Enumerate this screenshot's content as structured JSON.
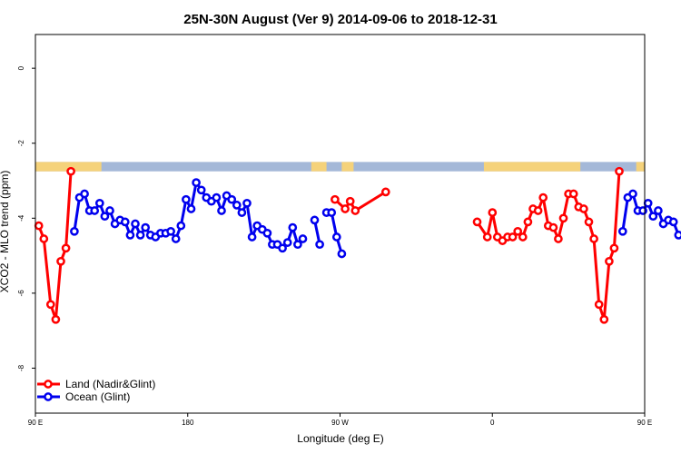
{
  "chart_data": {
    "type": "line",
    "title": "25N-30N August (Ver 9)   2014-09-06 to 2018-12-31",
    "xlabel": "Longitude (deg E)",
    "ylabel": "XCO2 - MLO trend (ppm)",
    "xlim": [
      90,
      450
    ],
    "ylim": [
      -9.2,
      0.9
    ],
    "x_ticks": [
      {
        "value": 90,
        "label": "90 E"
      },
      {
        "value": 180,
        "label": "180"
      },
      {
        "value": 270,
        "label": "90 W"
      },
      {
        "value": 360,
        "label": "0"
      },
      {
        "value": 450,
        "label": "90 E"
      },
      {
        "value": 540,
        "label": "180"
      }
    ],
    "y_ticks": [
      {
        "value": 0,
        "label": "0"
      },
      {
        "value": -2,
        "label": "-2"
      },
      {
        "value": -4,
        "label": "-4"
      },
      {
        "value": -6,
        "label": "-6"
      },
      {
        "value": -8,
        "label": "-8"
      }
    ],
    "legend_position": "bottom-left",
    "surface_band": {
      "y_top": -2.5,
      "y_bottom": -2.75,
      "ocean_color": "#a4b8d8",
      "land_color": "#f5d27a",
      "land_segments": [
        [
          90,
          129
        ],
        [
          253,
          262
        ],
        [
          271,
          278
        ],
        [
          355,
          412
        ],
        [
          445,
          490
        ]
      ]
    },
    "series": [
      {
        "name": "Land (Nadir&Glint)",
        "color": "#ff0000",
        "segments": [
          [
            [
              92,
              -4.2
            ],
            [
              95,
              -4.55
            ],
            [
              99,
              -6.3
            ],
            [
              102,
              -6.7
            ],
            [
              105,
              -5.15
            ],
            [
              108,
              -4.8
            ],
            [
              111,
              -2.75
            ]
          ],
          [
            [
              267,
              -3.5
            ],
            [
              273,
              -3.75
            ],
            [
              276,
              -3.55
            ],
            [
              279,
              -3.8
            ],
            [
              297,
              -3.3
            ]
          ],
          [
            [
              351,
              -4.1
            ],
            [
              357,
              -4.5
            ],
            [
              360,
              -3.85
            ],
            [
              363,
              -4.5
            ],
            [
              366,
              -4.6
            ],
            [
              369,
              -4.5
            ],
            [
              372,
              -4.5
            ],
            [
              375,
              -4.35
            ],
            [
              378,
              -4.5
            ],
            [
              381,
              -4.1
            ],
            [
              384,
              -3.75
            ],
            [
              387,
              -3.8
            ],
            [
              390,
              -3.45
            ],
            [
              393,
              -4.2
            ],
            [
              396,
              -4.25
            ],
            [
              399,
              -4.55
            ],
            [
              402,
              -4.0
            ],
            [
              405,
              -3.35
            ],
            [
              408,
              -3.35
            ],
            [
              411,
              -3.7
            ],
            [
              414,
              -3.75
            ],
            [
              417,
              -4.1
            ],
            [
              420,
              -4.55
            ],
            [
              423,
              -6.3
            ],
            [
              426,
              -6.7
            ],
            [
              429,
              -5.15
            ],
            [
              432,
              -4.8
            ],
            [
              435,
              -2.75
            ]
          ]
        ]
      },
      {
        "name": "Ocean (Glint)",
        "color": "#0000ee",
        "segments": [
          [
            [
              113,
              -4.35
            ],
            [
              116,
              -3.45
            ],
            [
              119,
              -3.35
            ],
            [
              122,
              -3.8
            ],
            [
              125,
              -3.8
            ],
            [
              128,
              -3.6
            ],
            [
              131,
              -3.95
            ],
            [
              134,
              -3.8
            ],
            [
              137,
              -4.15
            ],
            [
              140,
              -4.05
            ],
            [
              143,
              -4.1
            ],
            [
              146,
              -4.45
            ],
            [
              149,
              -4.15
            ],
            [
              152,
              -4.45
            ],
            [
              155,
              -4.25
            ],
            [
              158,
              -4.45
            ],
            [
              161,
              -4.5
            ],
            [
              164,
              -4.4
            ],
            [
              167,
              -4.4
            ],
            [
              170,
              -4.35
            ],
            [
              173,
              -4.55
            ],
            [
              176,
              -4.2
            ],
            [
              179,
              -3.5
            ],
            [
              182,
              -3.75
            ],
            [
              185,
              -3.05
            ],
            [
              188,
              -3.25
            ],
            [
              191,
              -3.45
            ],
            [
              194,
              -3.55
            ],
            [
              197,
              -3.45
            ],
            [
              200,
              -3.8
            ],
            [
              203,
              -3.4
            ],
            [
              206,
              -3.5
            ],
            [
              209,
              -3.65
            ],
            [
              212,
              -3.85
            ],
            [
              215,
              -3.6
            ],
            [
              218,
              -4.5
            ],
            [
              221,
              -4.2
            ],
            [
              224,
              -4.3
            ],
            [
              227,
              -4.4
            ],
            [
              230,
              -4.7
            ],
            [
              233,
              -4.7
            ],
            [
              236,
              -4.8
            ],
            [
              239,
              -4.65
            ],
            [
              242,
              -4.25
            ],
            [
              245,
              -4.7
            ],
            [
              248,
              -4.55
            ]
          ],
          [
            [
              255,
              -4.05
            ],
            [
              258,
              -4.7
            ]
          ],
          [
            [
              262,
              -3.85
            ],
            [
              265,
              -3.85
            ],
            [
              268,
              -4.5
            ],
            [
              271,
              -4.95
            ]
          ],
          [
            [
              437,
              -4.35
            ],
            [
              440,
              -3.45
            ],
            [
              443,
              -3.35
            ],
            [
              446,
              -3.8
            ],
            [
              449,
              -3.8
            ],
            [
              452,
              -3.6
            ],
            [
              455,
              -3.95
            ],
            [
              458,
              -3.8
            ],
            [
              461,
              -4.15
            ],
            [
              464,
              -4.05
            ],
            [
              467,
              -4.1
            ],
            [
              470,
              -4.45
            ]
          ]
        ]
      }
    ]
  }
}
